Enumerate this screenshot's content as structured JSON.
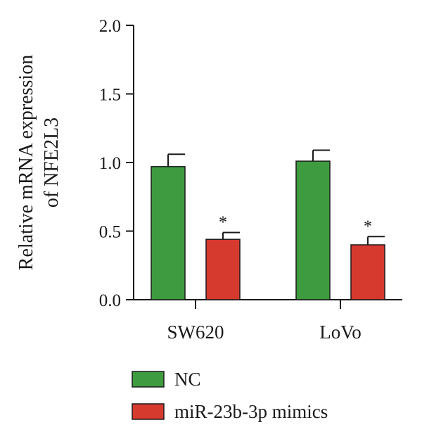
{
  "chart_data": {
    "type": "bar",
    "ylabel_lines": [
      "Relative mRNA expression",
      "of NFE2L3"
    ],
    "categories": [
      "SW620",
      "LoVo"
    ],
    "ylim": [
      0,
      2.0
    ],
    "yticks": [
      0.0,
      0.5,
      1.0,
      1.5,
      2.0
    ],
    "ytick_labels": [
      "0.0",
      "0.5",
      "1.0",
      "1.5",
      "2.0"
    ],
    "grid": false,
    "legend_position": "bottom",
    "series": [
      {
        "name": "NC",
        "color": "#3f9b3f",
        "values": [
          0.97,
          1.01
        ],
        "errors": [
          0.09,
          0.08
        ],
        "annotations": [
          "",
          ""
        ]
      },
      {
        "name": "miR-23b-3p mimics",
        "color": "#d63a2f",
        "values": [
          0.44,
          0.4
        ],
        "errors": [
          0.05,
          0.06
        ],
        "annotations": [
          "*",
          "*"
        ]
      }
    ]
  }
}
